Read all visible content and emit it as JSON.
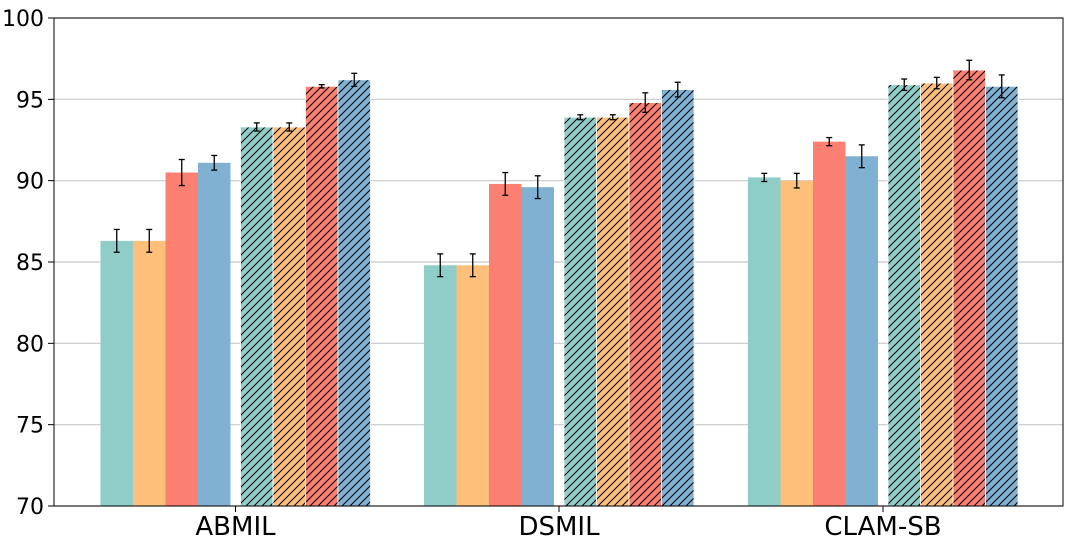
{
  "chart_data": {
    "type": "bar",
    "title": "",
    "xlabel": "",
    "ylabel": "",
    "ylim": [
      70,
      100
    ],
    "yticks": [
      70,
      75,
      80,
      85,
      90,
      95,
      100
    ],
    "grid": "horizontal",
    "legend": "none",
    "categories": [
      "ABMIL",
      "DSMIL",
      "CLAM-SB"
    ],
    "series": [
      {
        "name": "series-1",
        "color": "#8ecdc8",
        "hatched": false,
        "values": [
          86.3,
          84.8,
          90.2
        ],
        "errors": [
          0.7,
          0.7,
          0.25
        ]
      },
      {
        "name": "series-2",
        "color": "#fdbf7a",
        "hatched": false,
        "values": [
          86.3,
          84.8,
          90.0
        ],
        "errors": [
          0.7,
          0.7,
          0.45
        ]
      },
      {
        "name": "series-3",
        "color": "#fb8072",
        "hatched": false,
        "values": [
          90.5,
          89.8,
          92.4
        ],
        "errors": [
          0.8,
          0.7,
          0.25
        ]
      },
      {
        "name": "series-4",
        "color": "#80b1d3",
        "hatched": false,
        "values": [
          91.1,
          89.6,
          91.5
        ],
        "errors": [
          0.45,
          0.7,
          0.7
        ]
      },
      {
        "name": "series-5",
        "color": "#8ecdc8",
        "hatched": true,
        "values": [
          93.3,
          93.9,
          95.9
        ],
        "errors": [
          0.25,
          0.15,
          0.35
        ]
      },
      {
        "name": "series-6",
        "color": "#fdbf7a",
        "hatched": true,
        "values": [
          93.3,
          93.9,
          96.0
        ],
        "errors": [
          0.25,
          0.15,
          0.35
        ]
      },
      {
        "name": "series-7",
        "color": "#fb8072",
        "hatched": true,
        "values": [
          95.8,
          94.8,
          96.8
        ],
        "errors": [
          0.1,
          0.6,
          0.6
        ]
      },
      {
        "name": "series-8",
        "color": "#80b1d3",
        "hatched": true,
        "values": [
          96.2,
          95.6,
          95.8
        ],
        "errors": [
          0.4,
          0.45,
          0.7
        ]
      }
    ]
  }
}
